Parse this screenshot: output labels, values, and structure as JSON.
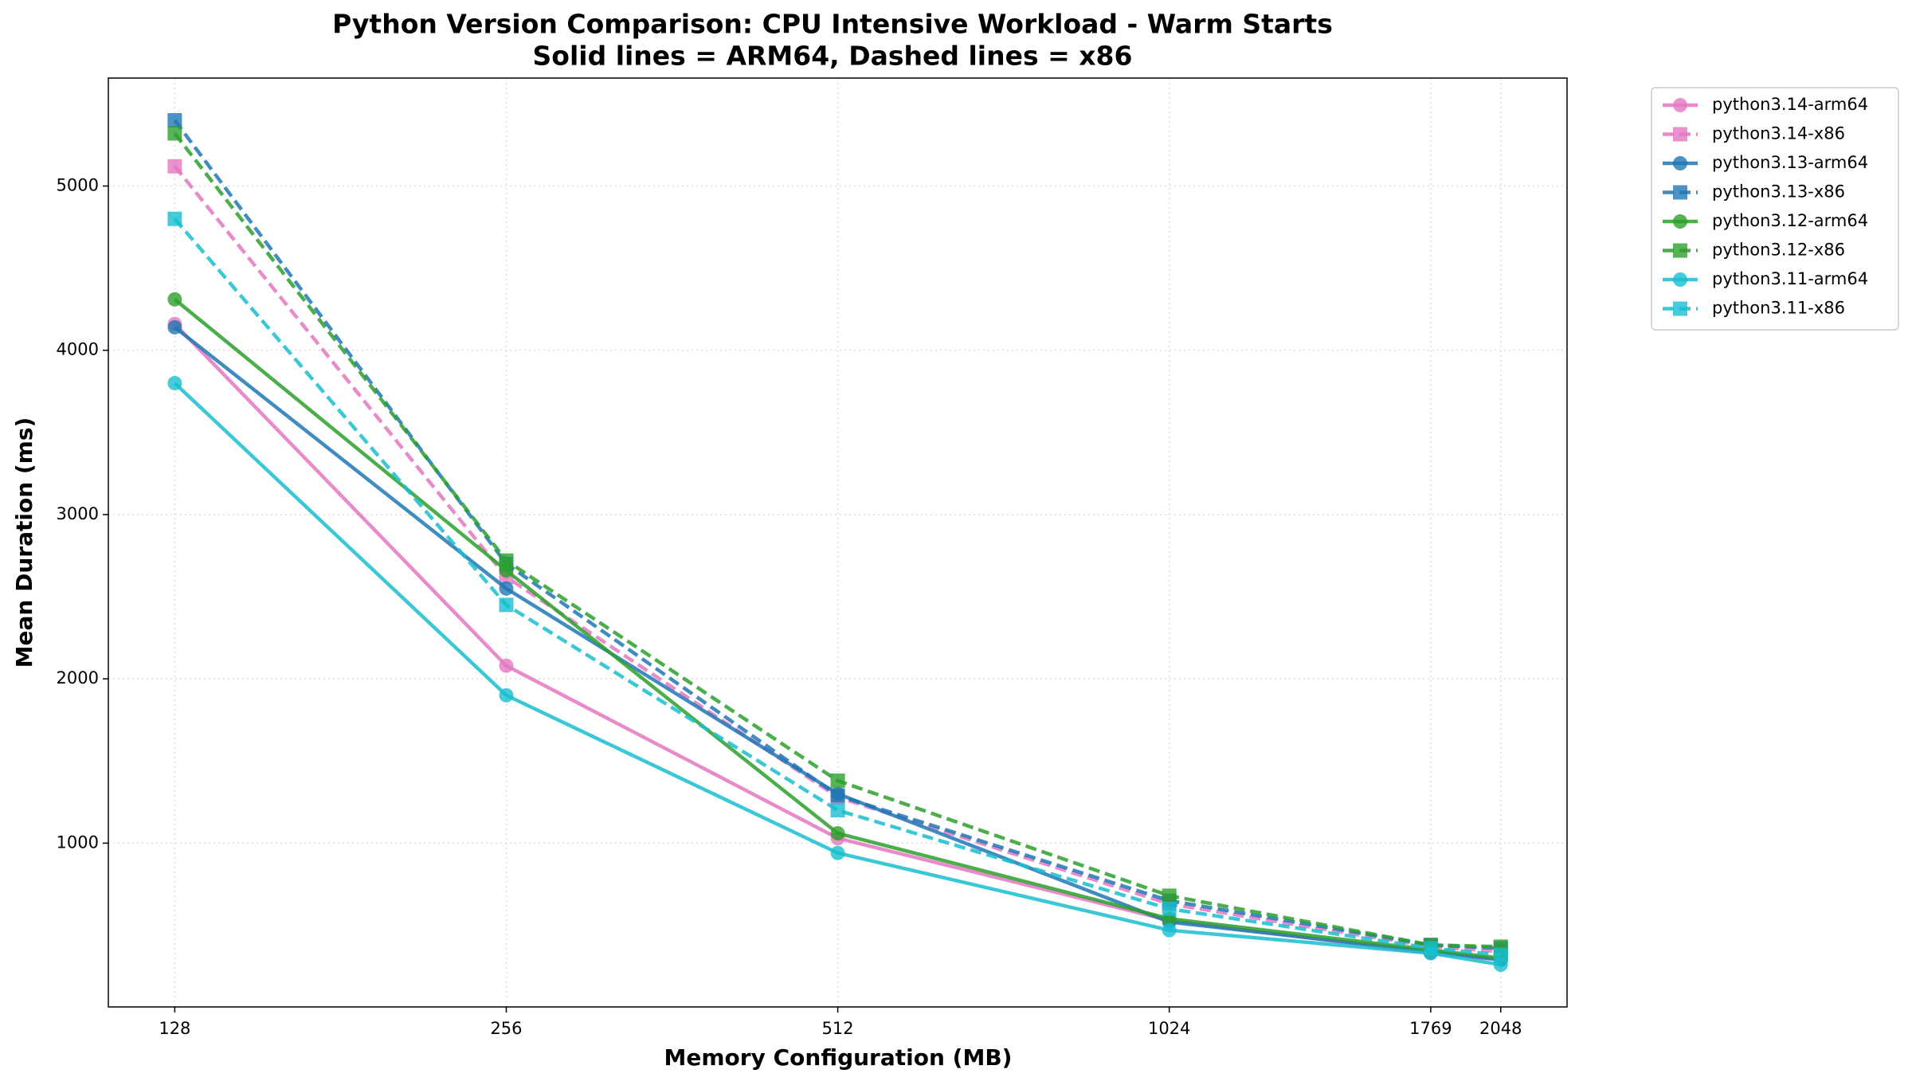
{
  "chart_data": {
    "type": "line",
    "title": "Python Version Comparison: CPU Intensive Workload - Warm Starts",
    "subtitle": "Solid lines = ARM64, Dashed lines = x86",
    "x_label": "Memory Configuration (MB)",
    "y_label": "Mean Duration (ms)",
    "x": [
      128,
      256,
      512,
      1024,
      1769,
      2048
    ],
    "xscale": "log",
    "xbase": 2,
    "xlim": [
      111.4,
      2352.5
    ],
    "xticks": [
      128,
      256,
      512,
      1024,
      1769,
      2048
    ],
    "ylim": [
      3,
      5657
    ],
    "yticks": [
      1000,
      2000,
      3000,
      4000,
      5000
    ],
    "grid": true,
    "legend": "outside-upper-right",
    "series": [
      {
        "name": "python3.14-arm64",
        "color": "#e377c2",
        "style": "solid",
        "marker": "circle",
        "values": [
          4160,
          2080,
          1030,
          530,
          330,
          290
        ]
      },
      {
        "name": "python3.14-x86",
        "color": "#e377c2",
        "style": "dashed",
        "marker": "square",
        "values": [
          5120,
          2620,
          1280,
          630,
          370,
          340
        ]
      },
      {
        "name": "python3.13-arm64",
        "color": "#1f77b4",
        "style": "solid",
        "marker": "circle",
        "values": [
          4140,
          2550,
          1300,
          520,
          340,
          290
        ]
      },
      {
        "name": "python3.13-x86",
        "color": "#1f77b4",
        "style": "dashed",
        "marker": "square",
        "values": [
          5400,
          2700,
          1290,
          650,
          380,
          360
        ]
      },
      {
        "name": "python3.12-arm64",
        "color": "#2ca02c",
        "style": "solid",
        "marker": "circle",
        "values": [
          4310,
          2660,
          1060,
          540,
          350,
          300
        ]
      },
      {
        "name": "python3.12-x86",
        "color": "#2ca02c",
        "style": "dashed",
        "marker": "square",
        "values": [
          5320,
          2720,
          1380,
          680,
          380,
          370
        ]
      },
      {
        "name": "python3.11-arm64",
        "color": "#17becf",
        "style": "solid",
        "marker": "circle",
        "values": [
          3800,
          1900,
          940,
          470,
          330,
          260
        ]
      },
      {
        "name": "python3.11-x86",
        "color": "#17becf",
        "style": "dashed",
        "marker": "square",
        "values": [
          4800,
          2450,
          1200,
          600,
          360,
          320
        ]
      }
    ]
  }
}
